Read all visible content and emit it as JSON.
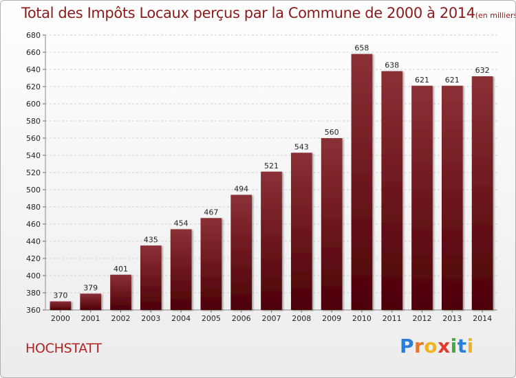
{
  "header": {
    "title": "Total des Impôts Locaux perçus par la Commune de 2000 à 2014",
    "unit": "(en milliers d'€)"
  },
  "footer": {
    "commune": "HOCHSTATT",
    "brand": "Proxiti"
  },
  "colors": {
    "bar_top": "#8b3036",
    "bar_bottom": "#4d0006",
    "title": "#8a1a1a",
    "commune": "#b22222"
  },
  "chart_data": {
    "type": "bar",
    "categories": [
      "2000",
      "2001",
      "2002",
      "2003",
      "2004",
      "2005",
      "2006",
      "2007",
      "2008",
      "2009",
      "2010",
      "2011",
      "2012",
      "2013",
      "2014"
    ],
    "values": [
      370,
      379,
      401,
      435,
      454,
      467,
      494,
      521,
      543,
      560,
      658,
      638,
      621,
      621,
      632
    ],
    "title": "Total des Impôts Locaux perçus par la Commune de 2000 à 2014",
    "ylim": [
      360,
      680
    ],
    "yticks": [
      360,
      380,
      400,
      420,
      440,
      460,
      480,
      500,
      520,
      540,
      560,
      580,
      600,
      620,
      640,
      660,
      680
    ],
    "grid": true,
    "legend": "none"
  }
}
